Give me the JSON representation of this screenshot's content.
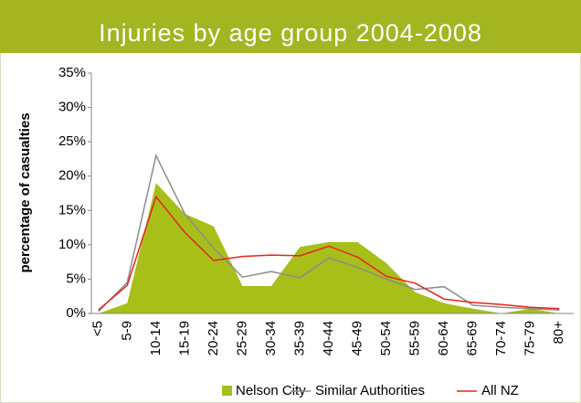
{
  "chart_data": {
    "type": "area",
    "title": "Injuries by age group 2004-2008",
    "y_label": "percentage of  casualties",
    "categories": [
      "<5",
      "5-9",
      "10-14",
      "15-19",
      "20-24",
      "25-29",
      "30-34",
      "35-39",
      "40-44",
      "45-49",
      "50-54",
      "55-59",
      "60-64",
      "65-69",
      "70-74",
      "75-79",
      "80+"
    ],
    "series": [
      {
        "name": "Nelson City",
        "color": "#a8bf1a",
        "style": "area",
        "values": [
          0,
          1.5,
          19,
          14.5,
          12.7,
          4,
          4,
          9.7,
          10.4,
          10.4,
          7.3,
          3.1,
          1.5,
          0.7,
          0,
          0.7,
          0
        ]
      },
      {
        "name": "Similar Authorities",
        "color": "#8c8c8c",
        "style": "line",
        "values": [
          0.3,
          4.5,
          23,
          14.5,
          9.5,
          5.3,
          6.1,
          5.2,
          8.1,
          6.7,
          5,
          3.5,
          3.9,
          1.2,
          0.9,
          0.7,
          0.5
        ]
      },
      {
        "name": "All NZ",
        "color": "#e8231b",
        "style": "line",
        "values": [
          0.5,
          4.1,
          17,
          11.8,
          7.7,
          8.3,
          8.5,
          8.4,
          9.8,
          8.2,
          5.4,
          4.4,
          2.1,
          1.6,
          1.3,
          0.9,
          0.7
        ]
      }
    ],
    "ylim": [
      0,
      35
    ],
    "yticks": [
      {
        "value": 0,
        "label": "0%"
      },
      {
        "value": 5,
        "label": "5%"
      },
      {
        "value": 10,
        "label": "10%"
      },
      {
        "value": 15,
        "label": "15%"
      },
      {
        "value": 20,
        "label": "20%"
      },
      {
        "value": 25,
        "label": "25%"
      },
      {
        "value": 30,
        "label": "30%"
      },
      {
        "value": 35,
        "label": "35%"
      }
    ],
    "grid": false,
    "legend": "bottom"
  }
}
